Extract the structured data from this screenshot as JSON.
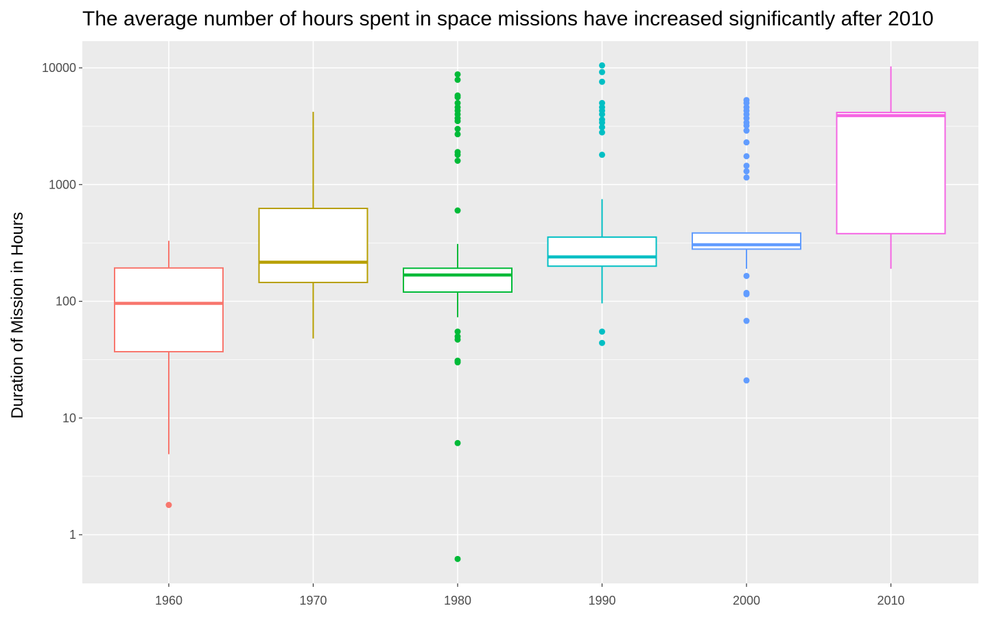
{
  "chart_data": {
    "type": "box",
    "title": "The average number of hours spent in space missions have increased significantly after 2010",
    "xlabel": "",
    "ylabel": "Duration of Mission in Hours",
    "y_scale": "log10",
    "ylim": [
      0.4,
      17000
    ],
    "y_ticks": [
      {
        "value": 1,
        "label": "1"
      },
      {
        "value": 10,
        "label": "10"
      },
      {
        "value": 100,
        "label": "100"
      },
      {
        "value": 1000,
        "label": "1000"
      },
      {
        "value": 10000,
        "label": "10000"
      }
    ],
    "grid": true,
    "legend": "none",
    "categories": [
      "1960",
      "1970",
      "1980",
      "1990",
      "2000",
      "2010"
    ],
    "boxes": [
      {
        "category": "1960",
        "color": "#F8766D",
        "whisker_low": 4.9,
        "q1": 37,
        "median": 96,
        "q3": 193,
        "whisker_high": 330,
        "outliers": [
          1.8
        ]
      },
      {
        "category": "1970",
        "color": "#B79F00",
        "whisker_low": 48,
        "q1": 145,
        "median": 216,
        "q3": 625,
        "whisker_high": 4200,
        "outliers": []
      },
      {
        "category": "1980",
        "color": "#00BA38",
        "whisker_low": 73,
        "q1": 120,
        "median": 168,
        "q3": 192,
        "whisker_high": 310,
        "outliers": [
          0.62,
          6.1,
          30,
          31,
          47,
          50,
          55,
          600,
          1600,
          1800,
          1900,
          2700,
          3000,
          3500,
          3700,
          4000,
          4300,
          4600,
          5000,
          5600,
          5800,
          7900,
          8800
        ]
      },
      {
        "category": "1990",
        "color": "#00BFC4",
        "whisker_low": 96,
        "q1": 200,
        "median": 240,
        "q3": 355,
        "whisker_high": 750,
        "outliers": [
          44,
          55,
          1800,
          2800,
          3100,
          3400,
          3600,
          4000,
          4300,
          4600,
          5000,
          7600,
          9200,
          10500
        ]
      },
      {
        "category": "2000",
        "color": "#619CFF",
        "whisker_low": 190,
        "q1": 280,
        "median": 305,
        "q3": 385,
        "whisker_high": 385,
        "outliers": [
          21,
          68,
          115,
          118,
          165,
          1150,
          1300,
          1450,
          1750,
          2300,
          2900,
          3200,
          3400,
          3700,
          4000,
          4300,
          4600,
          5000,
          5300
        ]
      },
      {
        "category": "2010",
        "color": "#F564E3",
        "whisker_low": 190,
        "q1": 380,
        "median": 3900,
        "q3": 4150,
        "whisker_high": 10300,
        "outliers": []
      }
    ]
  }
}
